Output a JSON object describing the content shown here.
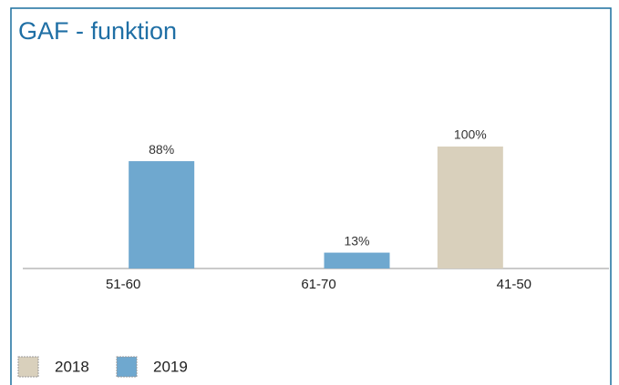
{
  "chart_data": {
    "type": "bar",
    "title": "GAF - funktion",
    "categories": [
      "51-60",
      "61-70",
      "41-50"
    ],
    "series": [
      {
        "name": "2018",
        "color": "#d9d0bc",
        "values": [
          null,
          null,
          100
        ],
        "value_labels": [
          null,
          null,
          "100%"
        ]
      },
      {
        "name": "2019",
        "color": "#6fa8cf",
        "values": [
          88,
          13,
          null
        ],
        "value_labels": [
          "88%",
          "13%",
          null
        ]
      }
    ]
  }
}
